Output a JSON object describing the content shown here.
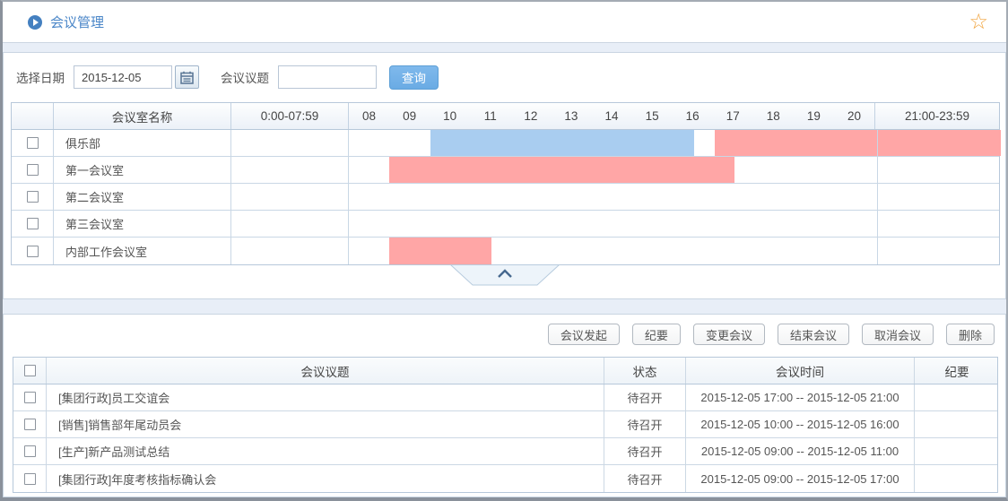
{
  "header": {
    "title": "会议管理",
    "star_glyph": "☆",
    "accent_color": "#4a86c8"
  },
  "filters": {
    "date_label": "选择日期",
    "date_value": "2015-12-05",
    "topic_label": "会议议题",
    "topic_value": "",
    "search_button": "查询"
  },
  "schedule": {
    "columns": {
      "room": "会议室名称",
      "early": "0:00-07:59",
      "late": "21:00-23:59"
    },
    "hours": [
      "08",
      "09",
      "10",
      "11",
      "12",
      "13",
      "14",
      "15",
      "16",
      "17",
      "18",
      "19",
      "20"
    ],
    "bar_colors": {
      "blue": "#a9cdf0",
      "red": "#ffa6a6"
    },
    "rows": [
      {
        "room": "俱乐部",
        "bars": [
          {
            "color": "blue",
            "start": 10,
            "end": 16.5
          },
          {
            "color": "red",
            "start": 17,
            "end": 24
          }
        ]
      },
      {
        "room": "第一会议室",
        "bars": [
          {
            "color": "red",
            "start": 9,
            "end": 17.5
          }
        ]
      },
      {
        "room": "第二会议室",
        "bars": []
      },
      {
        "room": "第三会议室",
        "bars": []
      },
      {
        "room": "内部工作会议室",
        "bars": [
          {
            "color": "red",
            "start": 9,
            "end": 11.5
          }
        ]
      }
    ]
  },
  "actions": [
    "会议发起",
    "纪要",
    "变更会议",
    "结束会议",
    "取消会议",
    "删除"
  ],
  "meetings": {
    "columns": [
      "会议议题",
      "状态",
      "会议时间",
      "纪要"
    ],
    "rows": [
      {
        "topic": "[集团行政]员工交谊会",
        "status": "待召开",
        "time": "2015-12-05 17:00 -- 2015-12-05 21:00",
        "minutes": ""
      },
      {
        "topic": "[销售]销售部年尾动员会",
        "status": "待召开",
        "time": "2015-12-05 10:00 -- 2015-12-05 16:00",
        "minutes": ""
      },
      {
        "topic": "[生产]新产品测试总结",
        "status": "待召开",
        "time": "2015-12-05 09:00 -- 2015-12-05 11:00",
        "minutes": ""
      },
      {
        "topic": "[集团行政]年度考核指标确认会",
        "status": "待召开",
        "time": "2015-12-05 09:00 -- 2015-12-05 17:00",
        "minutes": ""
      }
    ]
  },
  "icons": {
    "title": "circle-arrow-icon",
    "favorite": "star-icon",
    "calendar": "calendar-icon",
    "collapse": "chevron-up-icon"
  }
}
